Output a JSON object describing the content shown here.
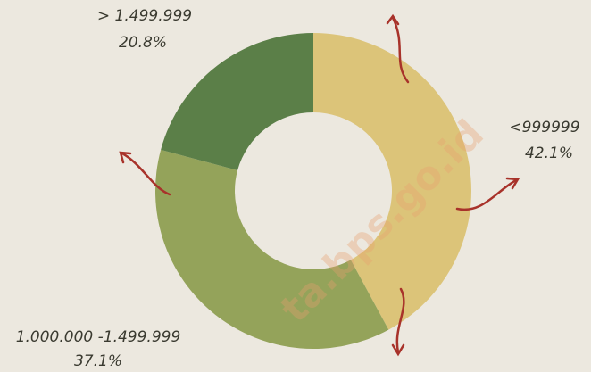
{
  "chart_data": {
    "type": "donut",
    "categories": [
      "<999999",
      "1.000.000 -1.499.999",
      "> 1.499.999"
    ],
    "values": [
      42.1,
      37.1,
      20.8
    ],
    "value_labels": [
      "42.1%",
      "37.1%",
      "20.8%"
    ],
    "colors": [
      "#dcc479",
      "#94a35a",
      "#5b7f48"
    ],
    "watermark": "ta.bps.go.id"
  }
}
